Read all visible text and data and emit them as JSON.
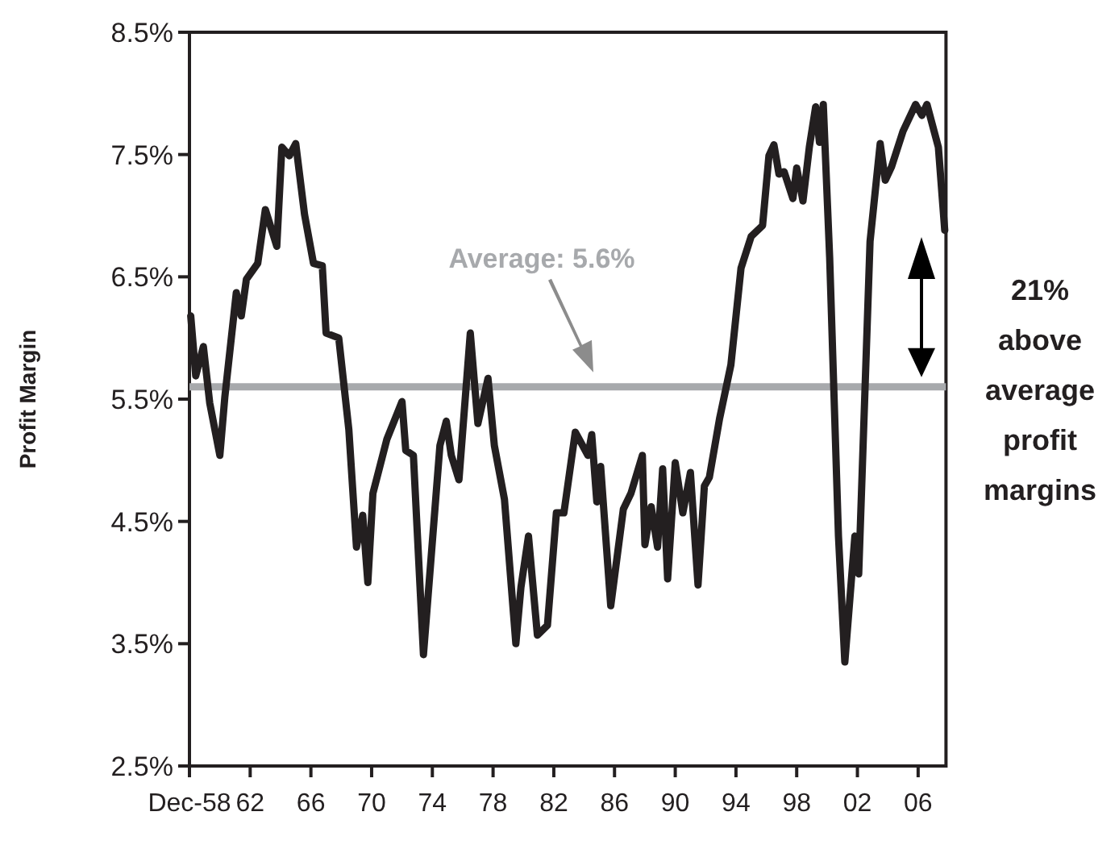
{
  "chart_data": {
    "type": "line",
    "ylabel": "Profit Margin",
    "xlim": [
      "1958-12",
      "2008-10"
    ],
    "xticks": [
      {
        "value": "1958-12",
        "label": "Dec-58"
      },
      {
        "value": "1962-12",
        "label": "62"
      },
      {
        "value": "1966-12",
        "label": "66"
      },
      {
        "value": "1970-12",
        "label": "70"
      },
      {
        "value": "1974-12",
        "label": "74"
      },
      {
        "value": "1978-12",
        "label": "78"
      },
      {
        "value": "1982-12",
        "label": "82"
      },
      {
        "value": "1986-12",
        "label": "86"
      },
      {
        "value": "1990-12",
        "label": "90"
      },
      {
        "value": "1994-12",
        "label": "94"
      },
      {
        "value": "1998-12",
        "label": "98"
      },
      {
        "value": "2002-12",
        "label": "02"
      },
      {
        "value": "2006-12",
        "label": "06"
      }
    ],
    "ylim": [
      2.5,
      8.5
    ],
    "yticks": [
      {
        "value": 2.5,
        "label": "2.5%"
      },
      {
        "value": 3.5,
        "label": "3.5%"
      },
      {
        "value": 4.5,
        "label": "4.5%"
      },
      {
        "value": 5.5,
        "label": "5.5%"
      },
      {
        "value": 6.5,
        "label": "6.5%"
      },
      {
        "value": 7.5,
        "label": "7.5%"
      },
      {
        "value": 8.5,
        "label": "8.5%"
      }
    ],
    "grid": false,
    "marker": "none",
    "line_style": "solid",
    "series": [
      {
        "color": "#231f20",
        "x": [
          "1959-01",
          "1959-05",
          "1959-11",
          "1960-04",
          "1960-12",
          "1961-04",
          "1962-01",
          "1962-05",
          "1962-09",
          "1963-06",
          "1963-12",
          "1964-09",
          "1965-01",
          "1965-07",
          "1965-12",
          "1966-07",
          "1967-02",
          "1967-09",
          "1967-12",
          "1968-10",
          "1969-06",
          "1969-12",
          "1970-05",
          "1970-09",
          "1971-01",
          "1971-12",
          "1972-12",
          "1973-03",
          "1973-09",
          "1974-05",
          "1975-06",
          "1975-11",
          "1976-03",
          "1976-09",
          "1977-06",
          "1977-12",
          "1978-08",
          "1979-01",
          "1979-09",
          "1980-06",
          "1980-10",
          "1981-04",
          "1981-11",
          "1982-07",
          "1983-02",
          "1983-08",
          "1984-05",
          "1985-03",
          "1985-06",
          "1985-10",
          "1986-01",
          "1986-09",
          "1987-07",
          "1988-01",
          "1988-10",
          "1988-12",
          "1989-05",
          "1989-10",
          "1990-02",
          "1990-06",
          "1990-12",
          "1991-06",
          "1991-12",
          "1992-06",
          "1992-11",
          "1993-03",
          "1993-11",
          "1994-08",
          "1995-04",
          "1995-12",
          "1996-09",
          "1997-02",
          "1997-06",
          "1997-10",
          "1998-02",
          "1998-09",
          "1998-12",
          "1999-05",
          "1999-10",
          "2000-03",
          "2000-06",
          "2000-09",
          "2001-02",
          "2001-09",
          "2002-02",
          "2002-10",
          "2003-01",
          "2003-10",
          "2004-06",
          "2004-10",
          "2005-03",
          "2005-12",
          "2006-10",
          "2007-03",
          "2007-07",
          "2008-04",
          "2008-09"
        ],
        "values": [
          6.18,
          5.69,
          5.93,
          5.47,
          5.04,
          5.52,
          6.37,
          6.18,
          6.48,
          6.61,
          7.05,
          6.75,
          7.56,
          7.49,
          7.59,
          7.01,
          6.61,
          6.59,
          6.04,
          6.0,
          5.25,
          4.29,
          4.55,
          4.0,
          4.73,
          5.17,
          5.48,
          5.08,
          5.04,
          3.41,
          5.12,
          5.32,
          5.04,
          4.84,
          6.04,
          5.3,
          5.67,
          5.12,
          4.68,
          3.5,
          3.96,
          4.38,
          3.57,
          3.65,
          4.57,
          4.57,
          5.23,
          5.04,
          5.21,
          4.66,
          4.95,
          3.81,
          4.6,
          4.73,
          5.04,
          4.31,
          4.62,
          4.29,
          4.93,
          4.03,
          4.98,
          4.57,
          4.9,
          3.98,
          4.79,
          4.86,
          5.34,
          5.78,
          6.57,
          6.83,
          6.92,
          7.49,
          7.58,
          7.34,
          7.36,
          7.14,
          7.39,
          7.12,
          7.56,
          7.89,
          7.6,
          7.91,
          6.66,
          4.38,
          3.35,
          4.38,
          4.07,
          6.79,
          7.59,
          7.29,
          7.4,
          7.69,
          7.91,
          7.82,
          7.91,
          7.56,
          6.88
        ]
      }
    ],
    "ref_lines": [
      {
        "axis": "y",
        "value": 5.6,
        "label": "Average: 5.6%",
        "color": "#a7a9ac",
        "line_style": "solid"
      }
    ],
    "annotations": [
      "21% above average profit margins"
    ]
  }
}
